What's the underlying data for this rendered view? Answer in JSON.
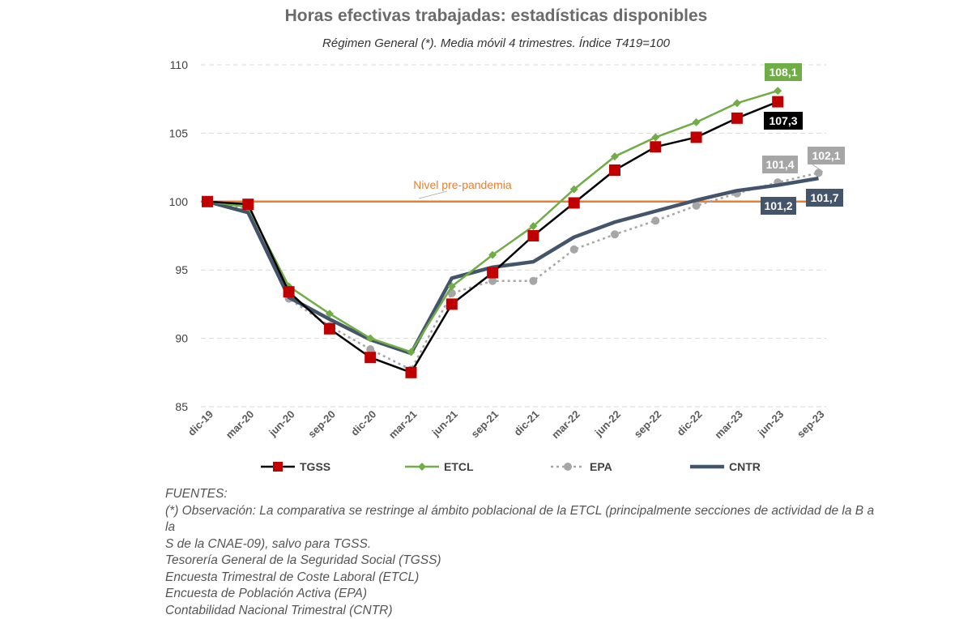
{
  "chart_data": {
    "type": "line",
    "title": "Horas efectivas trabajadas: estadísticas disponibles",
    "subtitle": "Régimen General (*). Media móvil 4 trimestres. Índice T419=100",
    "categories": [
      "dic-19",
      "mar-20",
      "jun-20",
      "sep-20",
      "dic-20",
      "mar-21",
      "jun-21",
      "sep-21",
      "dic-21",
      "mar-22",
      "jun-22",
      "sep-22",
      "dic-22",
      "mar-23",
      "jun-23",
      "sep-23"
    ],
    "ylim": [
      85,
      110
    ],
    "yticks": [
      85,
      90,
      95,
      100,
      105,
      110
    ],
    "grid": true,
    "legend_position": "bottom",
    "reference_line": {
      "value": 100,
      "label": "Nivel pre-pandemia",
      "color": "#ED7D31"
    },
    "series": [
      {
        "name": "TGSS",
        "color": "#C00000",
        "line_color": "#000000",
        "marker": "square",
        "values": [
          100,
          99.8,
          93.4,
          90.7,
          88.6,
          87.5,
          92.5,
          94.8,
          97.5,
          99.9,
          102.3,
          104.0,
          104.7,
          106.1,
          107.3,
          null
        ],
        "end_label": "107,3",
        "label_bg": "#000000"
      },
      {
        "name": "ETCL",
        "color": "#70AD47",
        "line_color": "#70AD47",
        "marker": "diamond",
        "values": [
          100,
          99.6,
          93.8,
          91.8,
          90.0,
          89.0,
          93.8,
          96.1,
          98.2,
          100.9,
          103.3,
          104.7,
          105.8,
          107.2,
          108.1,
          null
        ],
        "end_label": "108,1",
        "label_bg": "#70AD47"
      },
      {
        "name": "EPA",
        "color": "#A6A6A6",
        "line_color": "#A6A6A6",
        "marker": "circle",
        "dashed": true,
        "values": [
          100,
          99.4,
          92.9,
          90.9,
          89.2,
          87.7,
          93.3,
          94.2,
          94.2,
          96.5,
          97.6,
          98.6,
          99.7,
          100.6,
          101.4,
          102.1
        ],
        "end_label": "102,1",
        "label_bg": "#A6A6A6",
        "extra_label": "101,4"
      },
      {
        "name": "CNTR",
        "color": "#44546A",
        "line_color": "#44546A",
        "marker": "none",
        "thick": true,
        "values": [
          100,
          99.2,
          93.0,
          91.4,
          89.9,
          88.9,
          94.4,
          95.2,
          95.6,
          97.4,
          98.5,
          99.3,
          100.1,
          100.8,
          101.2,
          101.7
        ],
        "end_label": "101,7",
        "label_bg": "#44546A",
        "extra_label": "101,2"
      }
    ]
  },
  "notes": {
    "line1": "FUENTES:",
    "line2": "(*) Observación: La comparativa se restringe al ámbito poblacional de la ETCL (principalmente secciones de actividad de la B a la",
    "line3": "S de la CNAE-09), salvo para TGSS.",
    "line4": "Tesorería General de la Seguridad Social (TGSS)",
    "line5": "Encuesta Trimestral de Coste Laboral (ETCL)",
    "line6": "Encuesta de Población Activa (EPA)",
    "line7": "Contabilidad Nacional Trimestral (CNTR)"
  }
}
